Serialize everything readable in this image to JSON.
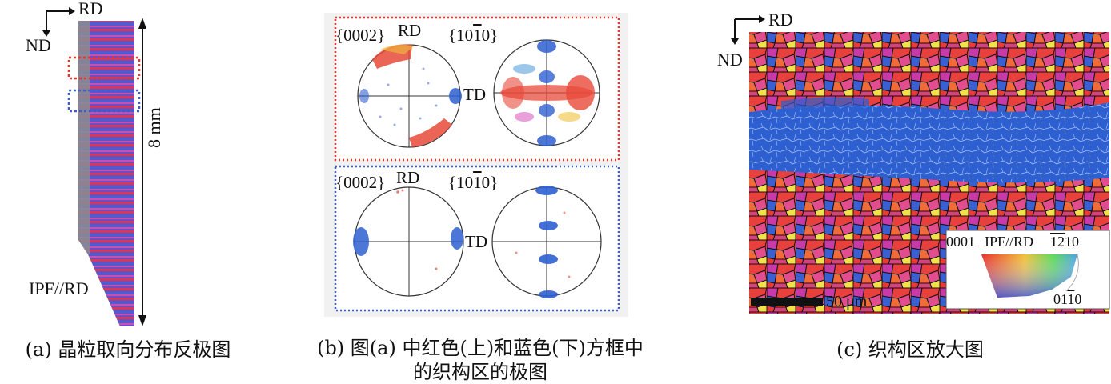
{
  "panel_a": {
    "axis_rd": "RD",
    "axis_nd": "ND",
    "scale": "8 mm",
    "legend": "IPF//RD",
    "caption": "(a) 晶粒取向分布反极图"
  },
  "panel_b": {
    "top": {
      "pf1_pre": "{000",
      "pf1_bar": "",
      "pf1_post": "2}",
      "pf1_axis": "RD",
      "pf2_pre": "{10",
      "pf2_bar": "1",
      "pf2_post": "0}",
      "td": "TD"
    },
    "bottom": {
      "pf1_pre": "{000",
      "pf1_bar": "",
      "pf1_post": "2}",
      "pf1_axis": "RD",
      "pf2_pre": "{10",
      "pf2_bar": "1",
      "pf2_post": "0}",
      "td": "TD"
    },
    "caption_line1": "(b) 图(a) 中红色(上)和蓝色(下)方框中",
    "caption_line2": "的织构区的极图"
  },
  "panel_c": {
    "axis_rd": "RD",
    "axis_nd": "ND",
    "legend_title": "IPF//RD",
    "legend_0001": "0001",
    "legend_1210_bar": "12",
    "legend_1210_rest": "10",
    "legend_0110_pre": "01",
    "legend_0110_bar": "1",
    "legend_0110_post": "0",
    "scalebar": "50 μm",
    "caption": "(c) 织构区放大图"
  },
  "colors": {
    "red_box": "#e8342f",
    "blue_box": "#3b5cc9",
    "map_red": "#e53b3b",
    "map_blue": "#2e5fd0",
    "map_magenta": "#d23fb5"
  }
}
